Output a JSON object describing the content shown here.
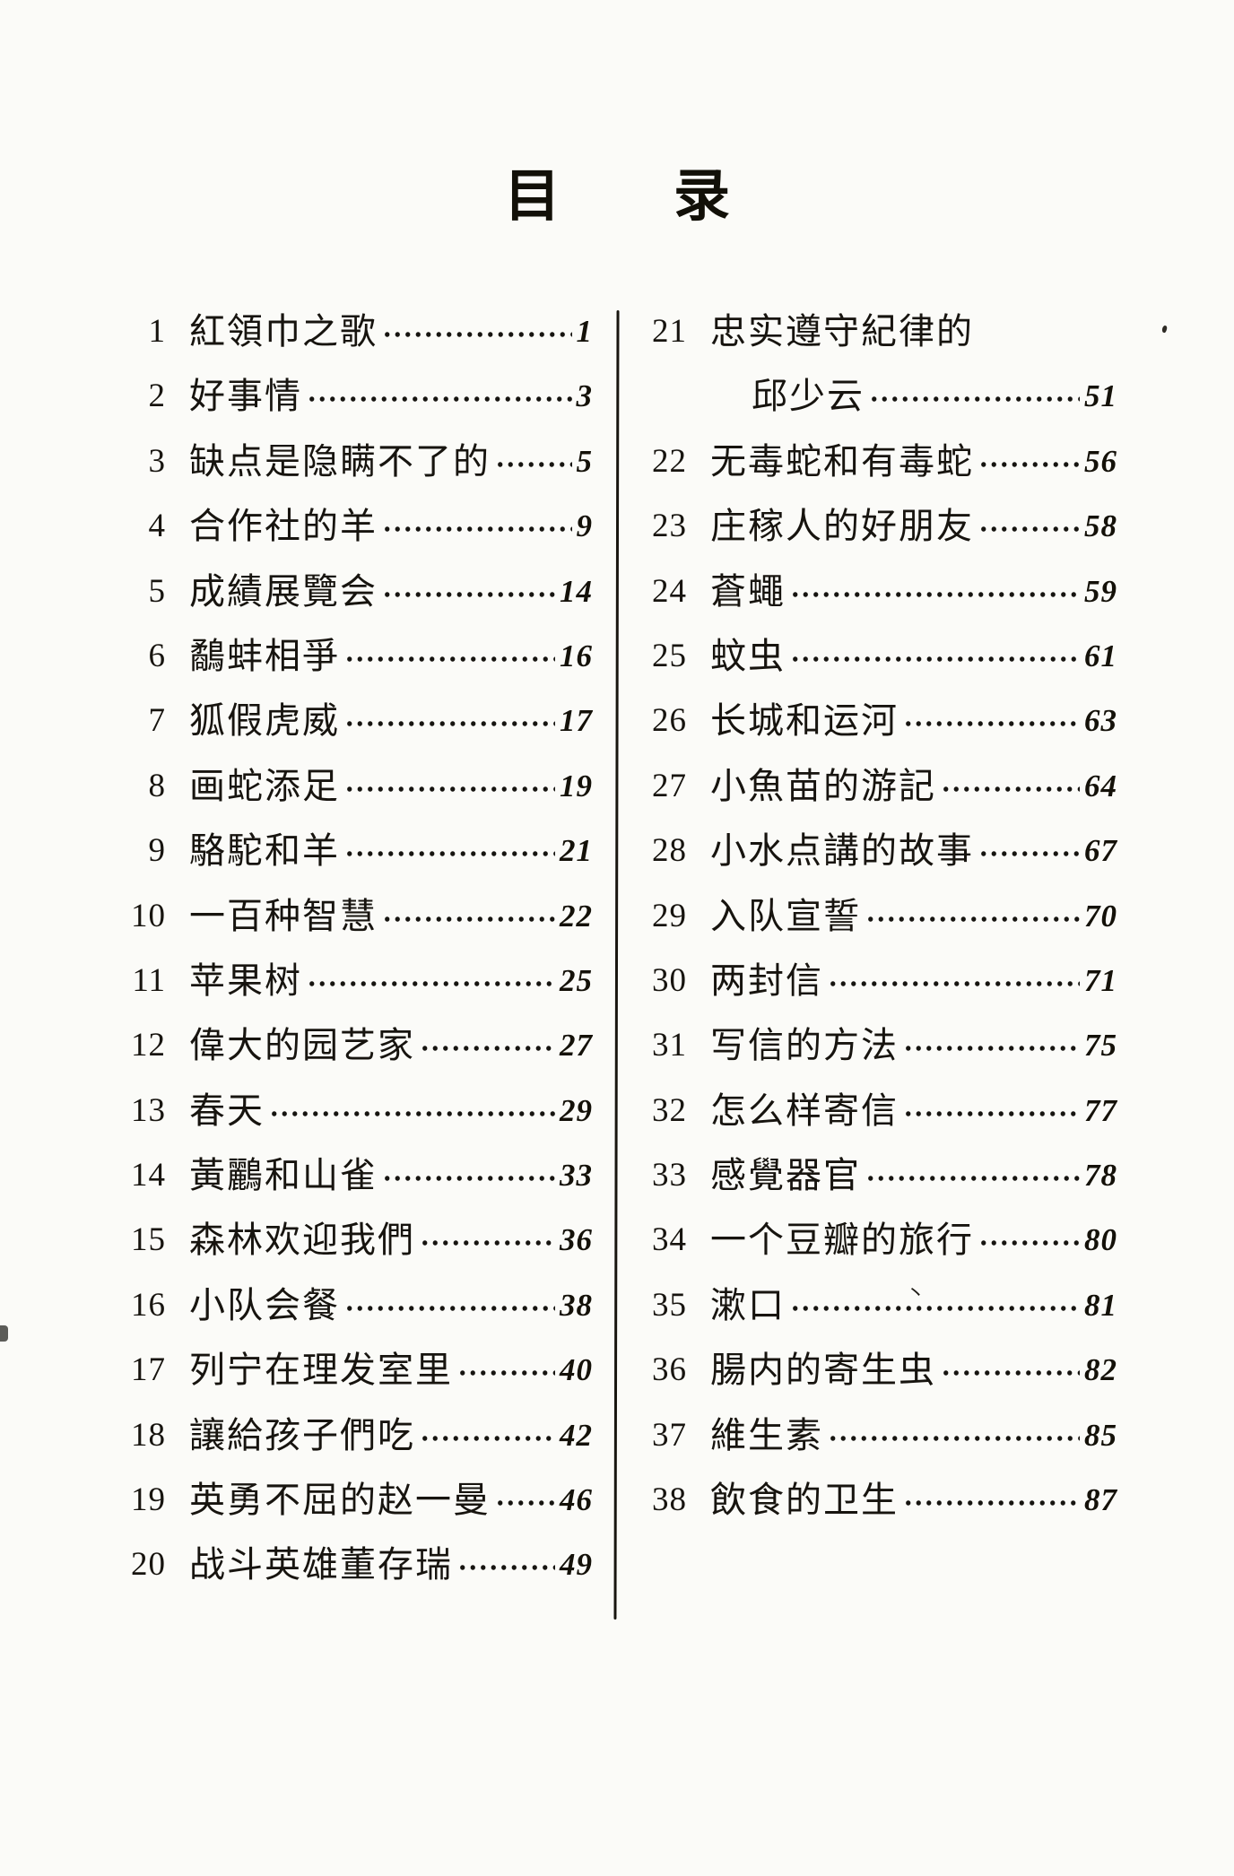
{
  "title": {
    "text": "目 录",
    "chars": [
      "目",
      "录"
    ]
  },
  "toc": {
    "left": [
      {
        "num": "1",
        "title": "紅領巾之歌",
        "page": "1"
      },
      {
        "num": "2",
        "title": "好事情",
        "page": "3"
      },
      {
        "num": "3",
        "title": "缺点是隐瞒不了的",
        "page": "5"
      },
      {
        "num": "4",
        "title": "合作社的羊",
        "page": "9"
      },
      {
        "num": "5",
        "title": "成績展覽会",
        "page": "14"
      },
      {
        "num": "6",
        "title": "鷸蚌相爭",
        "page": "16"
      },
      {
        "num": "7",
        "title": "狐假虎威",
        "page": "17"
      },
      {
        "num": "8",
        "title": "画蛇添足",
        "page": "19"
      },
      {
        "num": "9",
        "title": "駱駝和羊",
        "page": "21"
      },
      {
        "num": "10",
        "title": "一百种智慧",
        "page": "22"
      },
      {
        "num": "11",
        "title": "苹果树",
        "page": "25"
      },
      {
        "num": "12",
        "title": "偉大的园艺家",
        "page": "27"
      },
      {
        "num": "13",
        "title": "春天",
        "page": "29"
      },
      {
        "num": "14",
        "title": "黃鸝和山雀",
        "page": "33"
      },
      {
        "num": "15",
        "title": "森林欢迎我們",
        "page": "36"
      },
      {
        "num": "16",
        "title": "小队会餐",
        "page": "38"
      },
      {
        "num": "17",
        "title": "列宁在理发室里",
        "page": "40"
      },
      {
        "num": "18",
        "title": "讓給孩子們吃",
        "page": "42"
      },
      {
        "num": "19",
        "title": "英勇不屈的赵一曼",
        "page": "46"
      },
      {
        "num": "20",
        "title": "战斗英雄董存瑞",
        "page": "49"
      }
    ],
    "right": [
      {
        "num": "21",
        "title": "忠实遵守紀律的",
        "page": null
      },
      {
        "num": "",
        "title": "邱少云",
        "page": "51",
        "indent": true
      },
      {
        "num": "22",
        "title": "无毒蛇和有毒蛇",
        "page": "56"
      },
      {
        "num": "23",
        "title": "庄稼人的好朋友",
        "page": "58"
      },
      {
        "num": "24",
        "title": "蒼蠅",
        "page": "59"
      },
      {
        "num": "25",
        "title": "蚊虫",
        "page": "61"
      },
      {
        "num": "26",
        "title": "长城和运河",
        "page": "63"
      },
      {
        "num": "27",
        "title": "小魚苗的游記",
        "page": "64"
      },
      {
        "num": "28",
        "title": "小水点講的故事",
        "page": "67"
      },
      {
        "num": "29",
        "title": "入队宣誓",
        "page": "70"
      },
      {
        "num": "30",
        "title": "两封信",
        "page": "71"
      },
      {
        "num": "31",
        "title": "写信的方法",
        "page": "75"
      },
      {
        "num": "32",
        "title": "怎么样寄信",
        "page": "77"
      },
      {
        "num": "33",
        "title": "感覺器官",
        "page": "78"
      },
      {
        "num": "34",
        "title": "一个豆瓣的旅行",
        "page": "80"
      },
      {
        "num": "35",
        "title": "漱口",
        "page": "81"
      },
      {
        "num": "36",
        "title": "腸内的寄生虫",
        "page": "82"
      },
      {
        "num": "37",
        "title": "維生素",
        "page": "85"
      },
      {
        "num": "38",
        "title": "飲食的卫生",
        "page": "87"
      }
    ]
  },
  "artifacts": {
    "ink_mark": "丶"
  }
}
